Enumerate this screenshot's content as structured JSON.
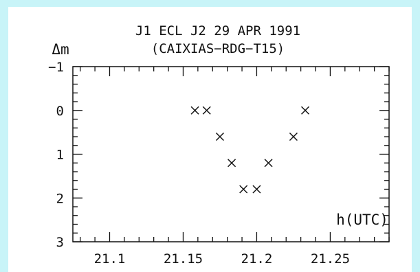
{
  "chart_data": {
    "type": "scatter",
    "title": "J1 ECL J2 29 APR 1991",
    "subtitle": "(CAIXIAS−RDG−T15)",
    "xlabel": "h(UTC)",
    "ylabel": "Δm",
    "xlim": [
      21.075,
      21.29
    ],
    "ylim": [
      -1,
      3
    ],
    "y_inverted": true,
    "x_ticks": [
      21.1,
      21.15,
      21.2,
      21.25
    ],
    "x_tick_labels": [
      "21.1",
      "21.15",
      "21.2",
      "21.25"
    ],
    "y_ticks": [
      -1,
      0,
      1,
      2,
      3
    ],
    "y_tick_labels": [
      "−1",
      "0",
      "1",
      "2",
      "3"
    ],
    "marker": "x",
    "grid": false,
    "points": [
      {
        "x": 21.158,
        "y": 0.0
      },
      {
        "x": 21.166,
        "y": 0.0
      },
      {
        "x": 21.175,
        "y": 0.6
      },
      {
        "x": 21.183,
        "y": 1.2
      },
      {
        "x": 21.191,
        "y": 1.8
      },
      {
        "x": 21.2,
        "y": 1.8
      },
      {
        "x": 21.208,
        "y": 1.2
      },
      {
        "x": 21.225,
        "y": 0.6
      },
      {
        "x": 21.233,
        "y": 0.0
      }
    ]
  }
}
